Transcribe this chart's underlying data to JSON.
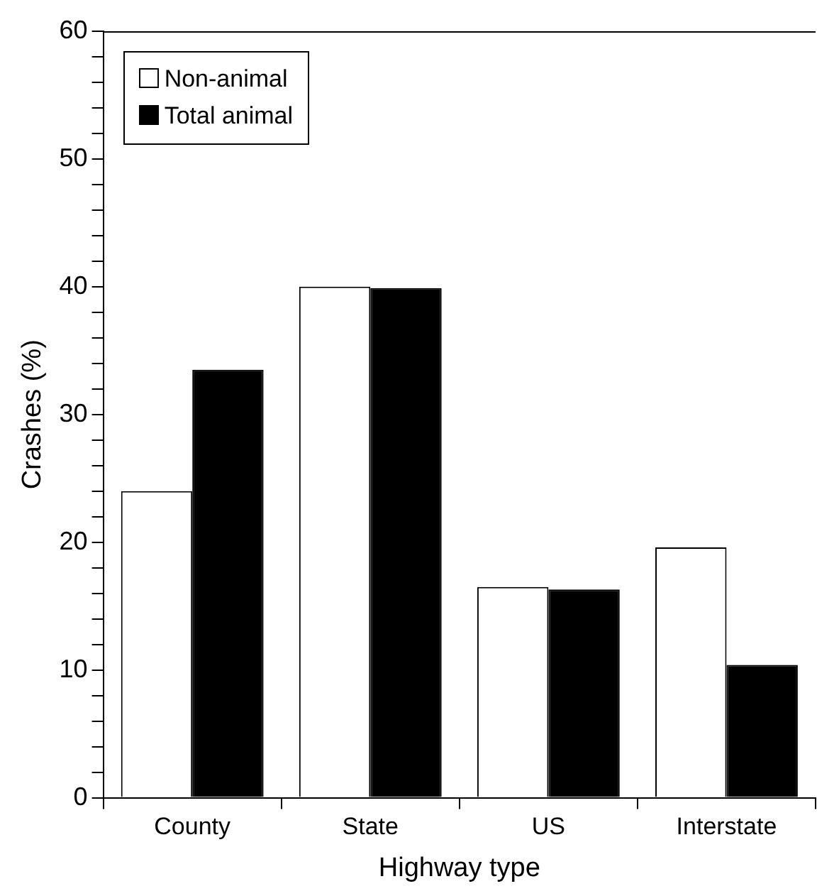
{
  "chart_data": {
    "type": "bar",
    "xlabel": "Highway type",
    "ylabel": "Crashes (%)",
    "categories": [
      "County",
      "State",
      "US",
      "Interstate"
    ],
    "series": [
      {
        "name": "Non-animal",
        "color": "#ffffff",
        "values": [
          24.0,
          40.0,
          16.5,
          19.6
        ]
      },
      {
        "name": "Total animal",
        "color": "#000000",
        "values": [
          33.5,
          39.9,
          16.3,
          10.4
        ]
      }
    ],
    "ylim": [
      0,
      60
    ],
    "yticks": [
      0,
      {
        "value": 2,
        "label": null
      },
      {
        "value": 4,
        "label": null
      },
      {
        "value": 6,
        "label": null
      },
      {
        "value": 8,
        "label": null
      },
      10,
      {
        "value": 12,
        "label": null
      },
      {
        "value": 14,
        "label": null
      },
      {
        "value": 16,
        "label": null
      },
      {
        "value": 18,
        "label": null
      },
      20,
      {
        "value": 22,
        "label": null
      },
      {
        "value": 24,
        "label": null
      },
      {
        "value": 26,
        "label": null
      },
      {
        "value": 28,
        "label": null
      },
      30,
      {
        "value": 32,
        "label": null
      },
      {
        "value": 34,
        "label": null
      },
      {
        "value": 36,
        "label": null
      },
      {
        "value": 38,
        "label": null
      },
      40,
      {
        "value": 42,
        "label": null
      },
      {
        "value": 44,
        "label": null
      },
      {
        "value": 46,
        "label": null
      },
      {
        "value": 48,
        "label": null
      },
      50,
      {
        "value": 52,
        "label": null
      },
      {
        "value": 54,
        "label": null
      },
      {
        "value": 56,
        "label": null
      },
      {
        "value": 58,
        "label": null
      },
      60
    ],
    "grid": false,
    "legend": "top left"
  }
}
